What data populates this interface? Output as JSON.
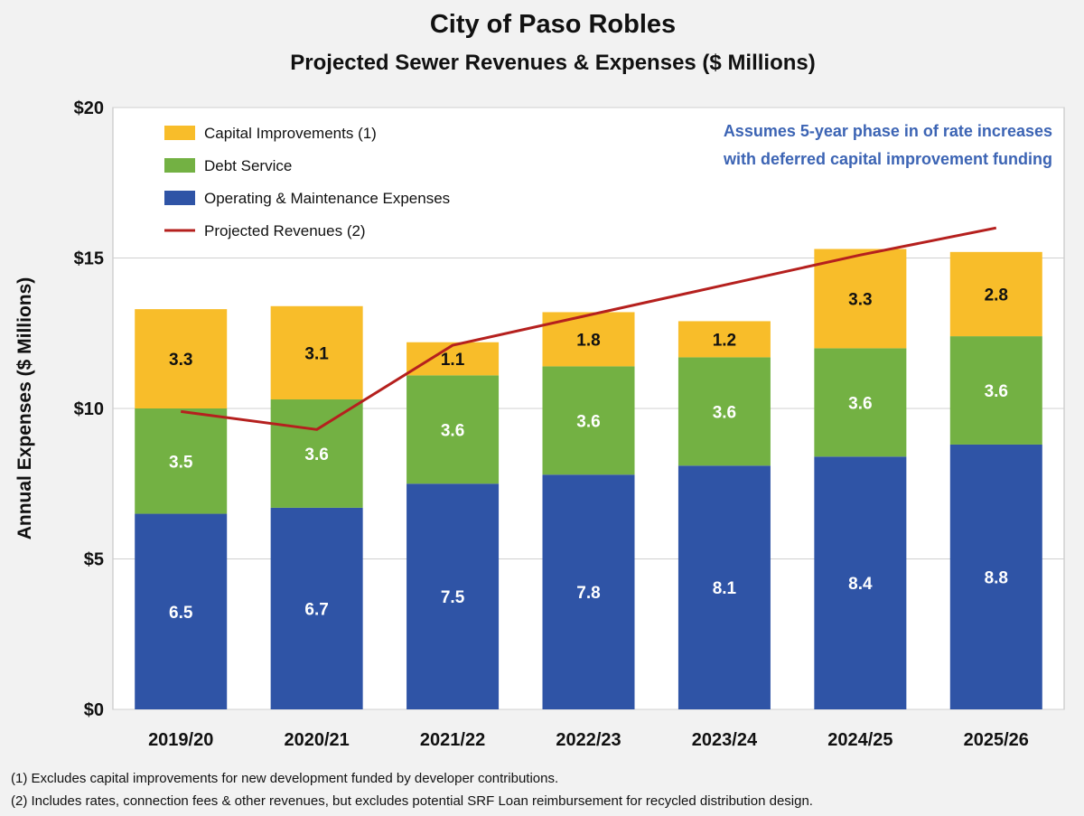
{
  "colors": {
    "capital": "#f8bd2a",
    "debt": "#73b143",
    "om": "#2f54a6",
    "revenue": "#b5201e",
    "note": "#3c64b4"
  },
  "chart_data": {
    "type": "bar",
    "stacked": true,
    "title": "City of Paso Robles",
    "subtitle": "Projected Sewer Revenues & Expenses ($ Millions)",
    "ylabel": "Annual Expenses ($ Millions)",
    "ylim": [
      0,
      20
    ],
    "yticks": [
      {
        "value": 0,
        "label": "$0"
      },
      {
        "value": 5,
        "label": "$5"
      },
      {
        "value": 10,
        "label": "$10"
      },
      {
        "value": 15,
        "label": "$15"
      },
      {
        "value": 20,
        "label": "$20"
      }
    ],
    "grid": true,
    "legend_position": "top-left",
    "categories": [
      "2019/20",
      "2020/21",
      "2021/22",
      "2022/23",
      "2023/24",
      "2024/25",
      "2025/26"
    ],
    "series": [
      {
        "name": "Operating & Maintenance Expenses",
        "key": "om",
        "values": [
          6.5,
          6.7,
          7.5,
          7.8,
          8.1,
          8.4,
          8.8
        ]
      },
      {
        "name": "Debt Service",
        "key": "debt",
        "values": [
          3.5,
          3.6,
          3.6,
          3.6,
          3.6,
          3.6,
          3.6
        ]
      },
      {
        "name": "Capital Improvements (1)",
        "key": "capital",
        "values": [
          3.3,
          3.1,
          1.1,
          1.8,
          1.2,
          3.3,
          2.8
        ]
      }
    ],
    "line_series": {
      "name": "Projected Revenues (2)",
      "values": [
        9.9,
        9.3,
        12.1,
        13.1,
        14.1,
        15.1,
        16.0
      ]
    },
    "legend": [
      {
        "label": "Capital Improvements (1)",
        "key": "capital",
        "kind": "box"
      },
      {
        "label": "Debt Service",
        "key": "debt",
        "kind": "box"
      },
      {
        "label": "Operating & Maintenance Expenses",
        "key": "om",
        "kind": "box"
      },
      {
        "label": "Projected Revenues (2)",
        "key": "revenue",
        "kind": "line"
      }
    ],
    "annotation": [
      "Assumes 5-year phase in of rate increases",
      "with deferred capital improvement funding"
    ],
    "footnotes": [
      "(1) Excludes capital improvements for new development funded by developer contributions.",
      "(2) Includes rates, connection fees & other revenues, but excludes potential SRF Loan reimbursement for recycled distribution design."
    ]
  }
}
